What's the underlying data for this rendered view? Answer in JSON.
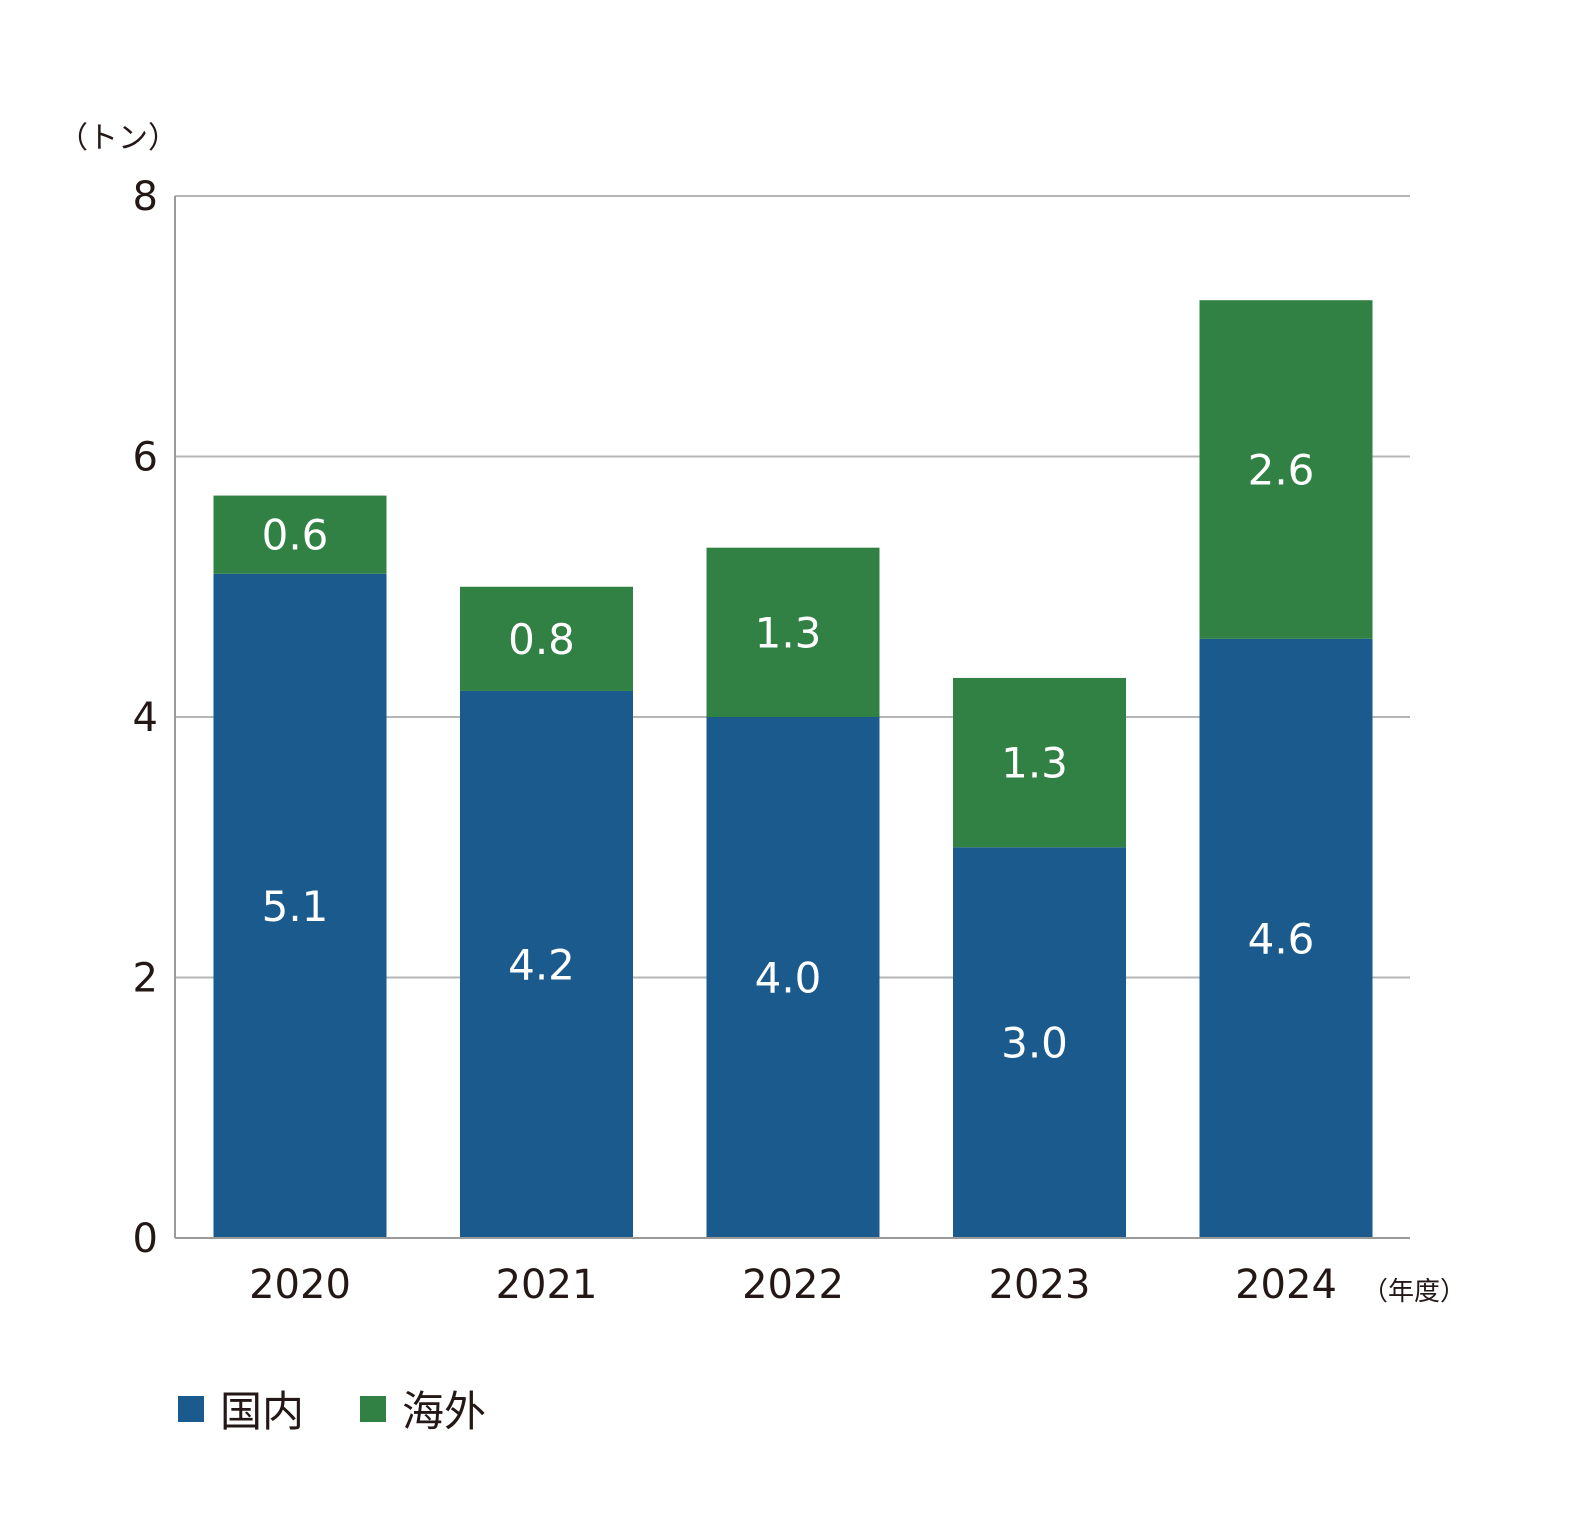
{
  "chart_data": {
    "type": "bar",
    "stacked": true,
    "categories": [
      "2020",
      "2021",
      "2022",
      "2023",
      "2024"
    ],
    "series": [
      {
        "name": "国内",
        "values": [
          5.1,
          4.2,
          4.0,
          3.0,
          4.6
        ],
        "labels": [
          "5.1",
          "4.2",
          "4.0",
          "3.0",
          "4.6"
        ],
        "color": "#1b5a8c"
      },
      {
        "name": "海外",
        "values": [
          0.6,
          0.8,
          1.3,
          1.3,
          2.6
        ],
        "labels": [
          "0.6",
          "0.8",
          "1.3",
          "1.3",
          "2.6"
        ],
        "color": "#318144"
      }
    ],
    "ylabel": "（トン）",
    "xlabel": "（年度）",
    "ylim": [
      0,
      8
    ],
    "yticks": [
      0,
      2,
      4,
      6,
      8
    ],
    "ytick_labels": [
      "0",
      "2",
      "4",
      "6",
      "8"
    ],
    "grid": true,
    "legend": "bottom-left"
  },
  "colors": {
    "grid": "#b5b5b5",
    "axis": "#9a9a9a",
    "text": "#231815",
    "label_on_bar": "#ffffff"
  }
}
